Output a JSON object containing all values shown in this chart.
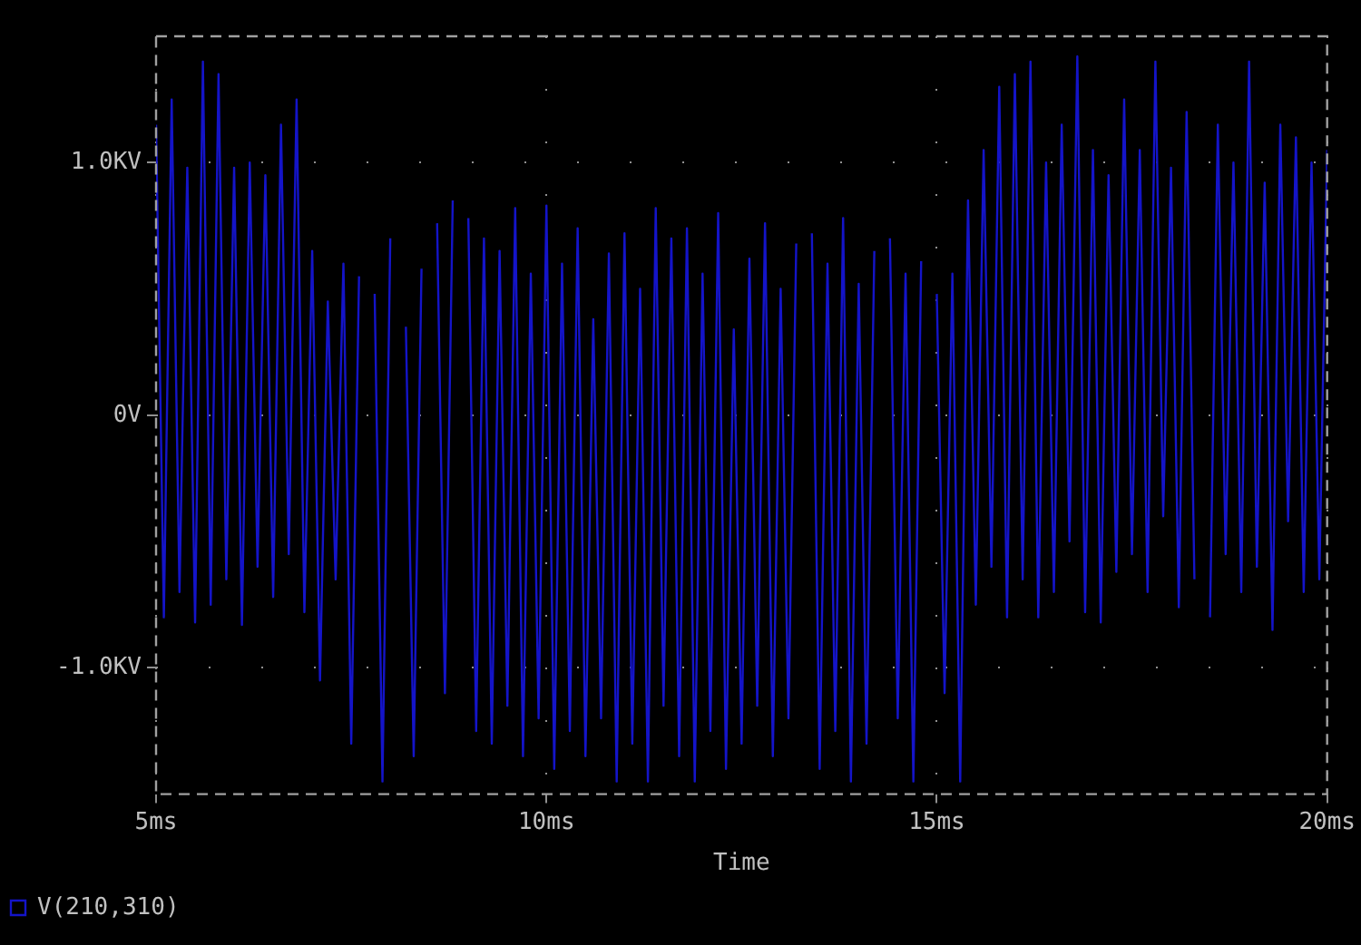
{
  "chart_data": {
    "type": "line",
    "xlabel": "Time",
    "marker": "none",
    "line_style": "solid",
    "grid": true,
    "legend": "bottom left",
    "xlim": [
      5,
      20
    ],
    "xticks": [
      {
        "value": 5,
        "label": "5ms"
      },
      {
        "value": 10,
        "label": "10ms"
      },
      {
        "value": 15,
        "label": "15ms"
      },
      {
        "value": 20,
        "label": "20ms"
      }
    ],
    "ylim": [
      -1.5,
      1.5
    ],
    "yticks": [
      {
        "value": -1,
        "label": "-1.0KV"
      },
      {
        "value": 0,
        "label": "0V"
      },
      {
        "value": 1,
        "label": "1.0KV"
      }
    ],
    "series": [
      {
        "name": "V(210,310)",
        "color": "#1414c8",
        "x": [
          5,
          5.1,
          5.2,
          5.3,
          5.4,
          5.5,
          5.6,
          5.7,
          5.8,
          5.9,
          6,
          6.1,
          6.2,
          6.3,
          6.4,
          6.5,
          6.6,
          6.7,
          6.8,
          6.9,
          7,
          7.1,
          7.2,
          7.3,
          7.4,
          7.5,
          7.6,
          7.7,
          7.8,
          7.9,
          8,
          8.1,
          8.2,
          8.3,
          8.4,
          8.5,
          8.6,
          8.7,
          8.8,
          8.9,
          9,
          9.1,
          9.2,
          9.3,
          9.4,
          9.5,
          9.6,
          9.7,
          9.8,
          9.9,
          10,
          10.1,
          10.2,
          10.3,
          10.4,
          10.5,
          10.6,
          10.7,
          10.8,
          10.9,
          11,
          11.1,
          11.2,
          11.3,
          11.4,
          11.5,
          11.6,
          11.7,
          11.8,
          11.9,
          12,
          12.1,
          12.2,
          12.3,
          12.4,
          12.5,
          12.6,
          12.7,
          12.8,
          12.9,
          13,
          13.1,
          13.2,
          13.3,
          13.4,
          13.5,
          13.6,
          13.7,
          13.8,
          13.9,
          14,
          14.1,
          14.2,
          14.3,
          14.4,
          14.5,
          14.6,
          14.7,
          14.8,
          14.9,
          15,
          15.1,
          15.2,
          15.3,
          15.4,
          15.5,
          15.6,
          15.7,
          15.8,
          15.9,
          16,
          16.1,
          16.2,
          16.3,
          16.4,
          16.5,
          16.6,
          16.7,
          16.8,
          16.9,
          17,
          17.1,
          17.2,
          17.3,
          17.4,
          17.5,
          17.6,
          17.7,
          17.8,
          17.9,
          18,
          18.1,
          18.2,
          18.3,
          18.4,
          18.5,
          18.6,
          18.7,
          18.8,
          18.9,
          19,
          19.1,
          19.2,
          19.3,
          19.4,
          19.5,
          19.6,
          19.7,
          19.8,
          19.9,
          20
        ],
        "values": [
          1.15,
          -0.8,
          1.25,
          -0.7,
          0.98,
          -0.82,
          1.4,
          -0.75,
          1.35,
          -0.65,
          0.98,
          -0.83,
          1.0,
          -0.6,
          0.95,
          -0.72,
          1.15,
          -0.55,
          1.25,
          -0.78,
          0.65,
          -1.05,
          0.45,
          -0.65,
          0.6,
          -1.3,
          0.55,
          null,
          0.48,
          -1.45,
          0.7,
          null,
          0.35,
          -1.35,
          0.58,
          null,
          0.76,
          -1.1,
          0.85,
          null,
          0.78,
          -1.25,
          0.7,
          -1.3,
          0.65,
          -1.15,
          0.82,
          -1.35,
          0.56,
          -1.2,
          0.83,
          -1.4,
          0.6,
          -1.25,
          0.74,
          -1.35,
          0.38,
          -1.2,
          0.64,
          -1.45,
          0.72,
          -1.3,
          0.5,
          -1.45,
          0.82,
          -1.15,
          0.7,
          -1.35,
          0.74,
          -1.45,
          0.56,
          -1.25,
          0.8,
          -1.4,
          0.34,
          -1.3,
          0.62,
          -1.15,
          0.76,
          -1.35,
          0.5,
          -1.2,
          0.68,
          null,
          0.72,
          -1.4,
          0.6,
          -1.25,
          0.78,
          -1.45,
          0.52,
          -1.3,
          0.65,
          null,
          0.7,
          -1.2,
          0.56,
          -1.45,
          0.61,
          null,
          0.48,
          -1.1,
          0.56,
          -1.45,
          0.85,
          -0.75,
          1.05,
          -0.6,
          1.3,
          -0.8,
          1.35,
          -0.65,
          1.4,
          -0.8,
          1.0,
          -0.7,
          1.15,
          -0.5,
          1.42,
          -0.78,
          1.05,
          -0.82,
          0.95,
          -0.62,
          1.25,
          -0.55,
          1.05,
          -0.7,
          1.4,
          -0.4,
          0.98,
          -0.76,
          1.2,
          -0.65,
          null,
          -0.8,
          1.15,
          -0.55,
          1.0,
          -0.7,
          1.4,
          -0.6,
          0.92,
          -0.85,
          1.15,
          -0.42,
          1.1,
          -0.7,
          1.0,
          -0.65,
          1.05
        ]
      }
    ]
  }
}
